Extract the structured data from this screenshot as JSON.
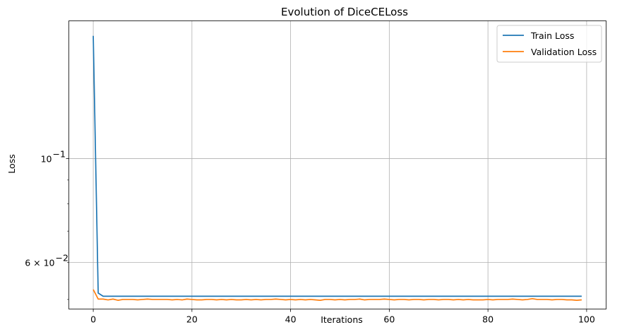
{
  "chart_data": {
    "type": "line",
    "title": "Evolution of DiceCELoss",
    "xlabel": "Iterations",
    "ylabel": "Loss",
    "yscale": "log",
    "xlim": [
      -4.95,
      103.95
    ],
    "ylim": [
      0.0477,
      0.197
    ],
    "xticks": [
      0,
      20,
      40,
      60,
      80,
      100
    ],
    "xtick_labels": [
      "0",
      "20",
      "40",
      "60",
      "80",
      "100"
    ],
    "yticks_major": [
      0.1
    ],
    "ytick_major_labels": [
      "10",
      "−1"
    ],
    "yticks_labeled_minor": [
      0.06
    ],
    "ytick_minor_labels": [
      "6 × 10",
      "−2"
    ],
    "yticks_minor_unlabeled": [
      0.05,
      0.07,
      0.08,
      0.09
    ],
    "grid": true,
    "legend_position": "top-right",
    "series": [
      {
        "name": "Train Loss",
        "color": "#1f77b4",
        "x_start": 0,
        "values": [
          0.183,
          0.0516,
          0.0508,
          0.0508,
          0.0508,
          0.0508,
          0.0508,
          0.0508,
          0.0508,
          0.0508,
          0.0508,
          0.0508,
          0.0508,
          0.0508,
          0.0508,
          0.0508,
          0.0508,
          0.0508,
          0.0508,
          0.0508,
          0.0508,
          0.0508,
          0.0508,
          0.0508,
          0.0508,
          0.0508,
          0.0508,
          0.0508,
          0.0508,
          0.0508,
          0.0508,
          0.0508,
          0.0508,
          0.0508,
          0.0508,
          0.0508,
          0.0508,
          0.0508,
          0.0508,
          0.0508,
          0.0508,
          0.0508,
          0.0508,
          0.0508,
          0.0508,
          0.0508,
          0.0508,
          0.0508,
          0.0508,
          0.0508,
          0.0508,
          0.0508,
          0.0508,
          0.0508,
          0.0508,
          0.0508,
          0.0508,
          0.0508,
          0.0508,
          0.0508,
          0.0508,
          0.0508,
          0.0508,
          0.0508,
          0.0508,
          0.0508,
          0.0508,
          0.0508,
          0.0508,
          0.0508,
          0.0508,
          0.0508,
          0.0508,
          0.0508,
          0.0508,
          0.0508,
          0.0508,
          0.0508,
          0.0508,
          0.0508,
          0.0508,
          0.0508,
          0.0508,
          0.0508,
          0.0508,
          0.0508,
          0.0508,
          0.0508,
          0.0508,
          0.0508,
          0.0508,
          0.0508,
          0.0508,
          0.0508,
          0.0508,
          0.0508,
          0.0508,
          0.0508,
          0.0508,
          0.0508
        ]
      },
      {
        "name": "Validation Loss",
        "color": "#ff7f0e",
        "x_start": 0,
        "values": [
          0.0525,
          0.0501,
          0.0501,
          0.0499,
          0.0501,
          0.0498,
          0.05,
          0.05,
          0.05,
          0.0499,
          0.05,
          0.0501,
          0.05,
          0.05,
          0.05,
          0.05,
          0.0499,
          0.05,
          0.0499,
          0.0501,
          0.05,
          0.0499,
          0.0499,
          0.05,
          0.05,
          0.0499,
          0.05,
          0.0499,
          0.05,
          0.0499,
          0.0499,
          0.05,
          0.0499,
          0.05,
          0.0499,
          0.05,
          0.05,
          0.0501,
          0.05,
          0.0499,
          0.05,
          0.0499,
          0.05,
          0.0499,
          0.05,
          0.0499,
          0.0498,
          0.05,
          0.05,
          0.0499,
          0.05,
          0.0499,
          0.05,
          0.05,
          0.0501,
          0.0499,
          0.05,
          0.05,
          0.05,
          0.0501,
          0.05,
          0.0499,
          0.05,
          0.05,
          0.0499,
          0.05,
          0.05,
          0.0499,
          0.05,
          0.05,
          0.0499,
          0.05,
          0.05,
          0.0499,
          0.05,
          0.0499,
          0.05,
          0.0499,
          0.0499,
          0.0499,
          0.05,
          0.0499,
          0.05,
          0.05,
          0.05,
          0.0501,
          0.05,
          0.0499,
          0.05,
          0.0502,
          0.05,
          0.05,
          0.05,
          0.0499,
          0.05,
          0.05,
          0.0499,
          0.0499,
          0.0498,
          0.0499
        ]
      }
    ]
  }
}
